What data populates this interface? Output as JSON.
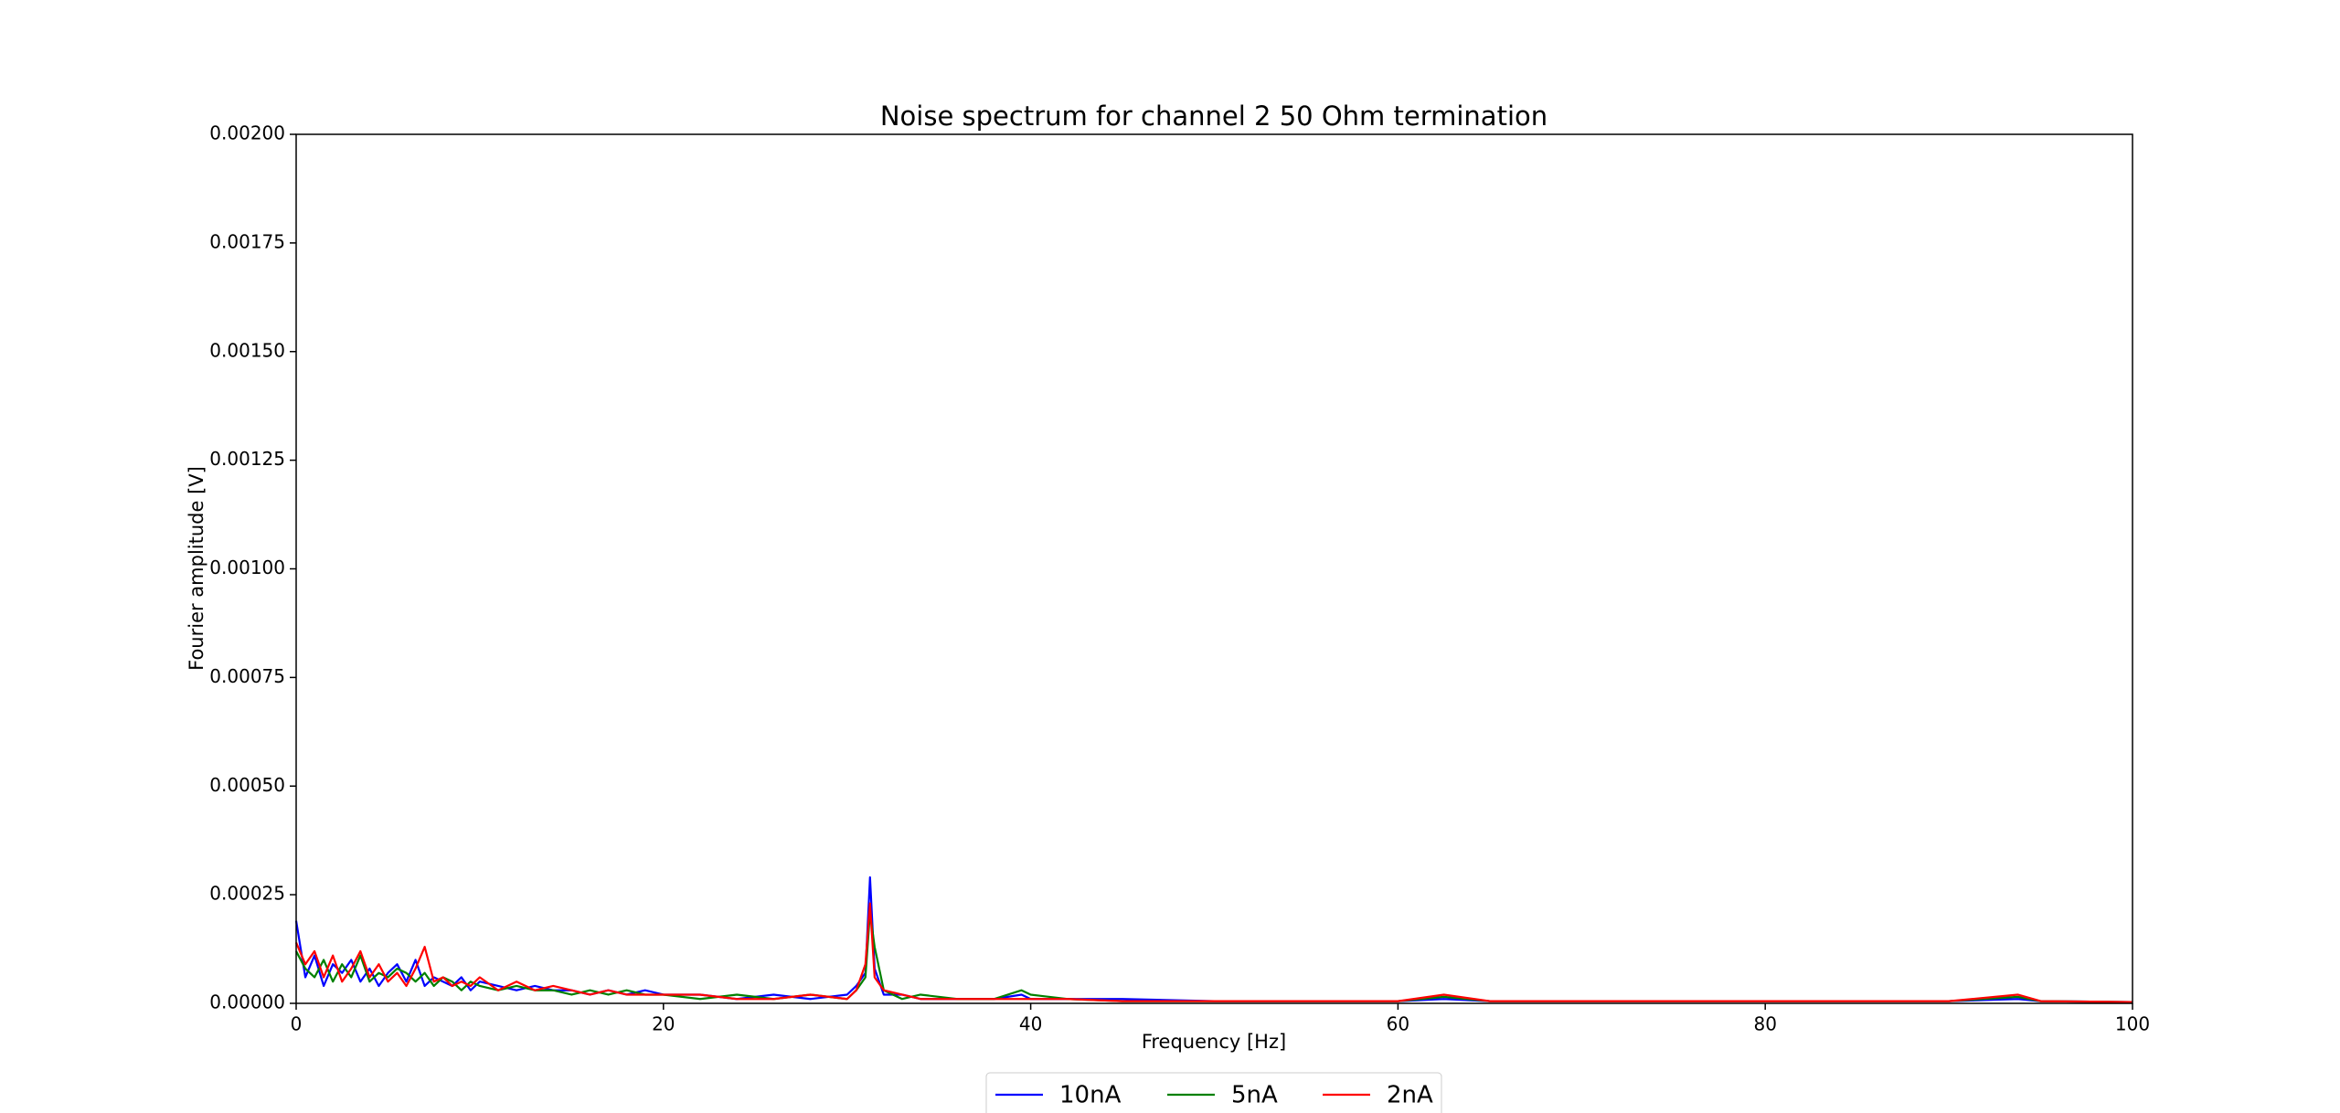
{
  "chart_data": {
    "type": "line",
    "title": "Noise spectrum for channel 2 50 Ohm termination",
    "x_label": "Frequency [Hz]",
    "y_label": "Fourier amplitude [V]",
    "x": [
      0,
      0.5,
      1,
      1.5,
      2,
      2.5,
      3,
      3.5,
      4,
      4.5,
      5,
      5.5,
      6,
      6.5,
      7,
      7.5,
      8,
      8.5,
      9,
      9.5,
      10,
      11,
      12,
      13,
      14,
      15,
      16,
      17,
      18,
      19,
      20,
      22,
      24,
      26,
      28,
      30,
      30.5,
      31,
      31.25,
      31.5,
      32,
      33,
      34,
      36,
      38,
      39.5,
      40,
      42,
      45,
      50,
      55,
      60,
      62.5,
      65,
      70,
      80,
      90,
      93.75,
      95,
      100
    ],
    "series": [
      {
        "name": "10nA",
        "color": "#0000ff",
        "values": [
          0.00019,
          6e-05,
          0.00011,
          4e-05,
          9e-05,
          7e-05,
          0.0001,
          5e-05,
          8e-05,
          4e-05,
          7e-05,
          9e-05,
          5e-05,
          0.0001,
          4e-05,
          6e-05,
          5e-05,
          4e-05,
          6e-05,
          3e-05,
          5e-05,
          4e-05,
          3e-05,
          4e-05,
          3e-05,
          3e-05,
          2e-05,
          3e-05,
          2e-05,
          3e-05,
          2e-05,
          2e-05,
          1e-05,
          2e-05,
          1e-05,
          2e-05,
          4e-05,
          7e-05,
          0.00029,
          8e-05,
          2e-05,
          2e-05,
          1e-05,
          1e-05,
          1e-05,
          2e-05,
          1e-05,
          1e-05,
          1e-05,
          5e-06,
          5e-06,
          5e-06,
          1e-05,
          5e-06,
          5e-06,
          5e-06,
          5e-06,
          1e-05,
          5e-06,
          3e-06
        ]
      },
      {
        "name": "5nA",
        "color": "#008000",
        "values": [
          0.00012,
          8e-05,
          6e-05,
          0.0001,
          5e-05,
          9e-05,
          6e-05,
          0.00011,
          5e-05,
          7e-05,
          6e-05,
          8e-05,
          7e-05,
          5e-05,
          7e-05,
          4e-05,
          6e-05,
          5e-05,
          3e-05,
          5e-05,
          4e-05,
          3e-05,
          4e-05,
          3e-05,
          3e-05,
          2e-05,
          3e-05,
          2e-05,
          3e-05,
          2e-05,
          2e-05,
          1e-05,
          2e-05,
          1e-05,
          2e-05,
          1e-05,
          3e-05,
          6e-05,
          0.00021,
          0.00013,
          3e-05,
          1e-05,
          2e-05,
          1e-05,
          1e-05,
          3e-05,
          2e-05,
          1e-05,
          5e-06,
          5e-06,
          5e-06,
          5e-06,
          1.5e-05,
          5e-06,
          5e-06,
          5e-06,
          5e-06,
          1.5e-05,
          5e-06,
          3e-06
        ]
      },
      {
        "name": "2nA",
        "color": "#ff0000",
        "values": [
          0.00014,
          9e-05,
          0.00012,
          6e-05,
          0.00011,
          5e-05,
          8e-05,
          0.00012,
          6e-05,
          9e-05,
          5e-05,
          7e-05,
          4e-05,
          8e-05,
          0.00013,
          5e-05,
          6e-05,
          4e-05,
          5e-05,
          4e-05,
          6e-05,
          3e-05,
          5e-05,
          3e-05,
          4e-05,
          3e-05,
          2e-05,
          3e-05,
          2e-05,
          2e-05,
          2e-05,
          2e-05,
          1e-05,
          1e-05,
          2e-05,
          1e-05,
          3e-05,
          9e-05,
          0.00023,
          6e-05,
          3e-05,
          2e-05,
          1e-05,
          1e-05,
          1e-05,
          1e-05,
          1e-05,
          1e-05,
          5e-06,
          5e-06,
          5e-06,
          5e-06,
          2e-05,
          5e-06,
          5e-06,
          5e-06,
          5e-06,
          2e-05,
          5e-06,
          3e-06
        ]
      }
    ],
    "xlim": [
      0,
      100
    ],
    "xticks": [
      0,
      20,
      40,
      60,
      80,
      100
    ],
    "ylim": [
      0,
      0.002
    ],
    "yticks": [
      {
        "value": 0,
        "label": "0.00000"
      },
      {
        "value": 0.00025,
        "label": "0.00025"
      },
      {
        "value": 0.0005,
        "label": "0.00050"
      },
      {
        "value": 0.00075,
        "label": "0.00075"
      },
      {
        "value": 0.001,
        "label": "0.00100"
      },
      {
        "value": 0.00125,
        "label": "0.00125"
      },
      {
        "value": 0.0015,
        "label": "0.00150"
      },
      {
        "value": 0.00175,
        "label": "0.00175"
      },
      {
        "value": 0.002,
        "label": "0.00200"
      }
    ],
    "legend": "bottom"
  }
}
